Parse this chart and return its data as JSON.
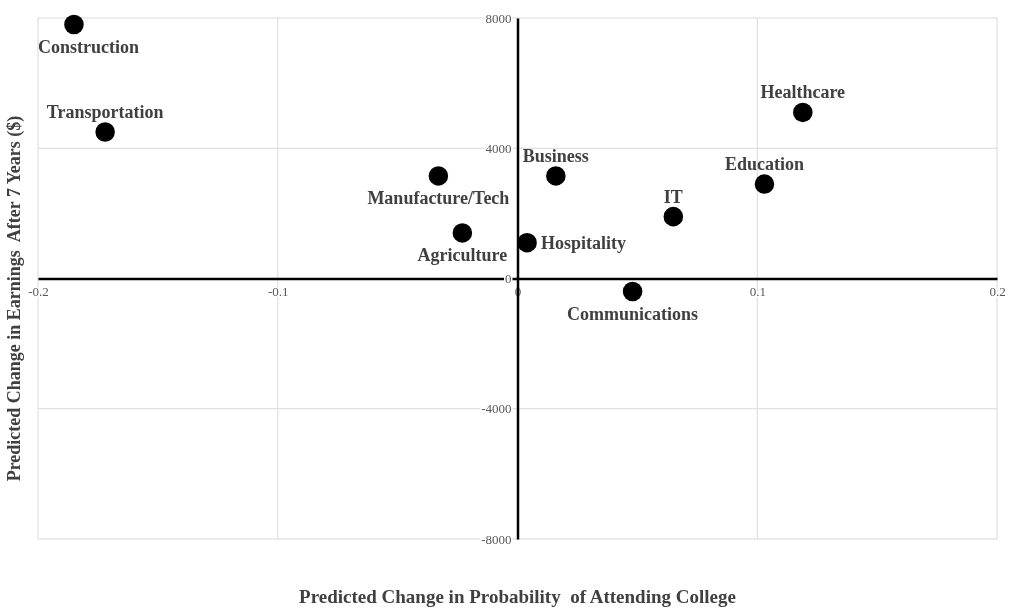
{
  "chart_data": {
    "type": "scatter",
    "xlabel": "Predicted Change in Probability  of Attending College",
    "ylabel": "Predicted Change in Earnings  After 7 Years ($)",
    "xlim": [
      -0.2,
      0.2
    ],
    "xticks": [
      -0.2,
      -0.1,
      0,
      0.1,
      0.2
    ],
    "ylim": [
      -8000,
      8000
    ],
    "yticks": [
      -8000,
      -4000,
      0,
      4000,
      8000
    ],
    "grid": true,
    "marker": "circle",
    "series": [
      {
        "name": "Construction",
        "color": "#000000",
        "x": [
          -0.185
        ],
        "values": [
          7800
        ]
      },
      {
        "name": "Transportation",
        "color": "#000000",
        "x": [
          -0.172
        ],
        "values": [
          4500
        ]
      },
      {
        "name": "Manufacture/Tech",
        "color": "#000000",
        "x": [
          -0.033
        ],
        "values": [
          3150
        ]
      },
      {
        "name": "Agriculture",
        "color": "#000000",
        "x": [
          -0.023
        ],
        "values": [
          1400
        ]
      },
      {
        "name": "Hospitality",
        "color": "#000000",
        "x": [
          0.004
        ],
        "values": [
          1100
        ]
      },
      {
        "name": "Business",
        "color": "#000000",
        "x": [
          0.016
        ],
        "values": [
          3150
        ]
      },
      {
        "name": "Communications",
        "color": "#000000",
        "x": [
          0.048
        ],
        "values": [
          -400
        ]
      },
      {
        "name": "IT",
        "color": "#000000",
        "x": [
          0.065
        ],
        "values": [
          1900
        ]
      },
      {
        "name": "Education",
        "color": "#000000",
        "x": [
          0.103
        ],
        "values": [
          2900
        ]
      },
      {
        "name": "Healthcare",
        "color": "#000000",
        "x": [
          0.119
        ],
        "values": [
          5100
        ]
      }
    ]
  }
}
